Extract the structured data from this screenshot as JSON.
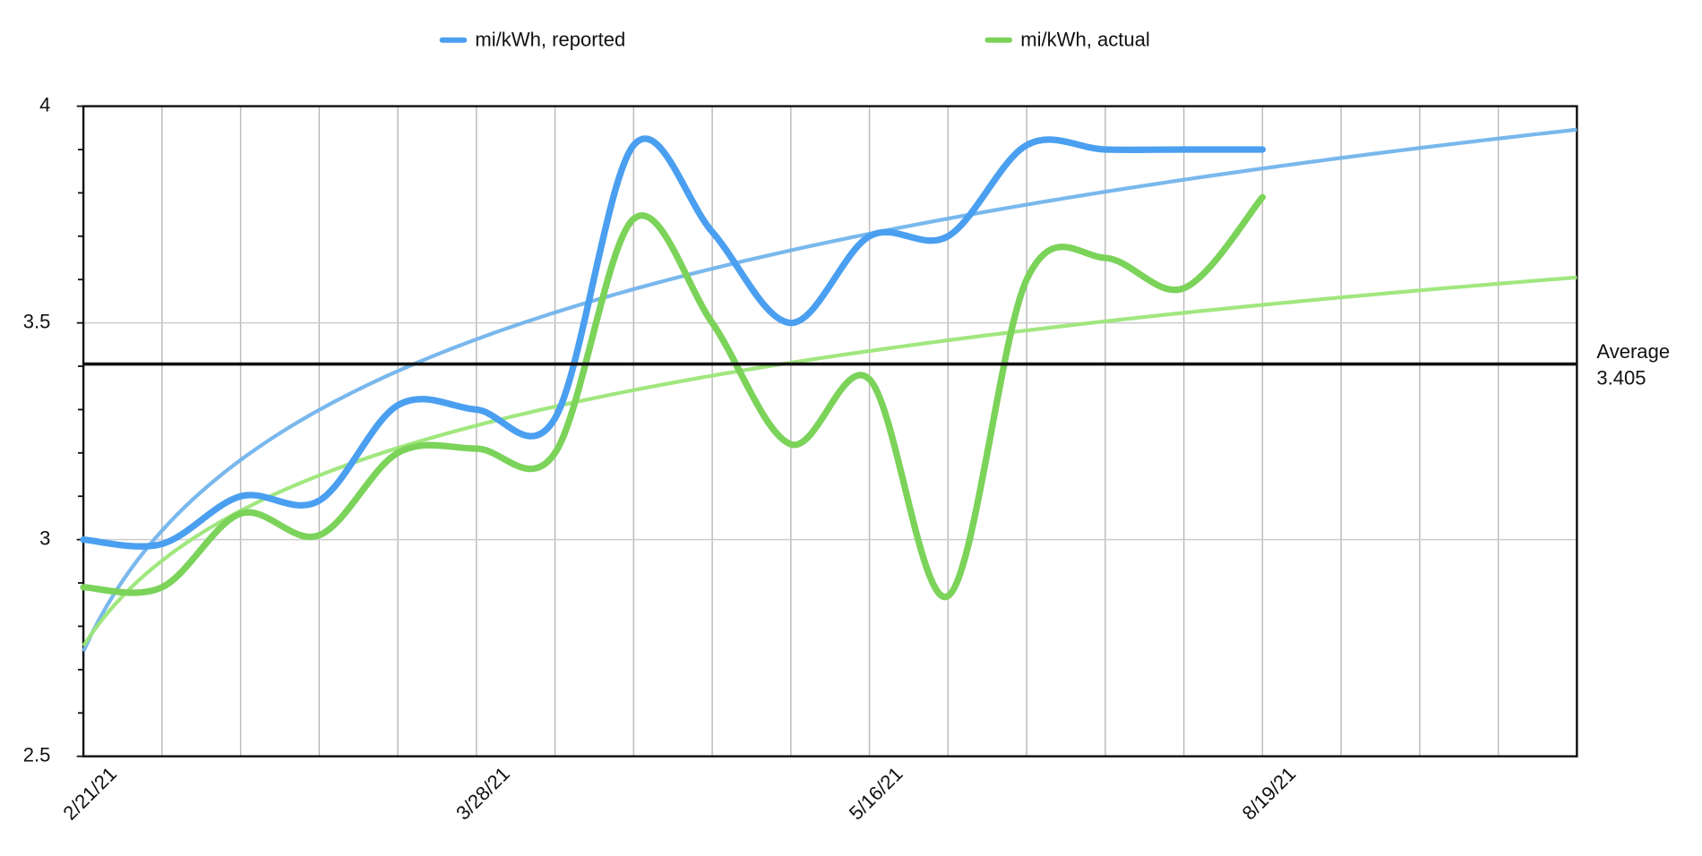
{
  "chart_data": {
    "type": "line",
    "categories": [
      "2/21/21",
      null,
      null,
      null,
      null,
      "3/28/21",
      null,
      null,
      null,
      null,
      "5/16/21",
      null,
      null,
      null,
      null,
      "8/19/21",
      null,
      null,
      null,
      null
    ],
    "series": [
      {
        "name": "mi/kWh, reported",
        "color": "#4a9ff0",
        "trend_color": "#72b4ec",
        "values": [
          3.0,
          2.99,
          3.1,
          3.09,
          3.31,
          3.3,
          3.28,
          3.91,
          3.71,
          3.5,
          3.7,
          3.7,
          3.91,
          3.9,
          3.9,
          3.9,
          null,
          null,
          null,
          null
        ]
      },
      {
        "name": "mi/kWh, actual",
        "color": "#7bd35a",
        "trend_color": "#9ce678",
        "values": [
          2.89,
          2.89,
          3.06,
          3.01,
          3.2,
          3.21,
          3.2,
          3.74,
          3.5,
          3.22,
          3.37,
          2.87,
          3.6,
          3.65,
          3.58,
          3.79,
          null,
          null,
          null,
          null
        ]
      }
    ],
    "trendline": "logarithmic",
    "reference_line": {
      "label": "Average",
      "value": 3.405
    },
    "ylim": [
      2.5,
      4
    ],
    "yticks": [
      2.5,
      3,
      3.5,
      4
    ],
    "yminorticks": [
      2.6,
      2.7,
      2.8,
      2.9,
      3.1,
      3.2,
      3.3,
      3.4,
      3.6,
      3.7,
      3.8,
      3.9
    ],
    "grid": true,
    "legend": "top"
  }
}
